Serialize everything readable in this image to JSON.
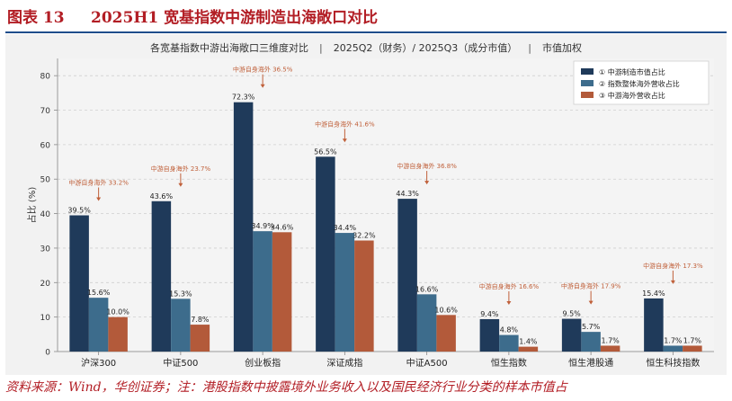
{
  "header": {
    "figure_number": "图表 13",
    "title": "2025H1 宽基指数中游制造出海敞口对比"
  },
  "subtitle": {
    "part1": "各宽基指数中游出海敞口三维度对比",
    "part2": "2025Q2（财务）/ 2025Q3（成分市值）",
    "part3": "市值加权",
    "separator": "|"
  },
  "footer": {
    "source": "资料来源：Wind，华创证券；注：港股指数中披露境外业务收入以及国民经济行业分类的样本市值占"
  },
  "chart_data": {
    "type": "bar",
    "ylabel": "占比 (%)",
    "ylim": [
      0,
      85
    ],
    "yticks": [
      0,
      10,
      20,
      30,
      40,
      50,
      60,
      70,
      80
    ],
    "grid": true,
    "legend_position": "top-right",
    "categories": [
      "沪深300",
      "中证500",
      "创业板指",
      "深证成指",
      "中证A500",
      "恒生指数",
      "恒生港股通",
      "恒生科技指数"
    ],
    "series": [
      {
        "name": "① 中游制造市值占比",
        "color": "#1f3a5a",
        "values": [
          39.5,
          43.6,
          72.3,
          56.5,
          44.3,
          9.4,
          9.5,
          15.4
        ]
      },
      {
        "name": "② 指数整体海外营收占比",
        "color": "#3d6c8c",
        "values": [
          15.6,
          15.3,
          34.9,
          34.4,
          16.6,
          4.8,
          5.7,
          1.7
        ]
      },
      {
        "name": "③ 中游海外营收占比",
        "color": "#b35a3a",
        "values": [
          10.0,
          7.8,
          34.6,
          32.2,
          10.6,
          1.4,
          1.7,
          1.7
        ]
      }
    ],
    "annotation_prefix": "中游自身海外",
    "annotation_values": [
      33.2,
      23.7,
      36.5,
      41.6,
      36.8,
      16.6,
      17.9,
      17.3
    ],
    "annotation_color": "#c0603a"
  }
}
